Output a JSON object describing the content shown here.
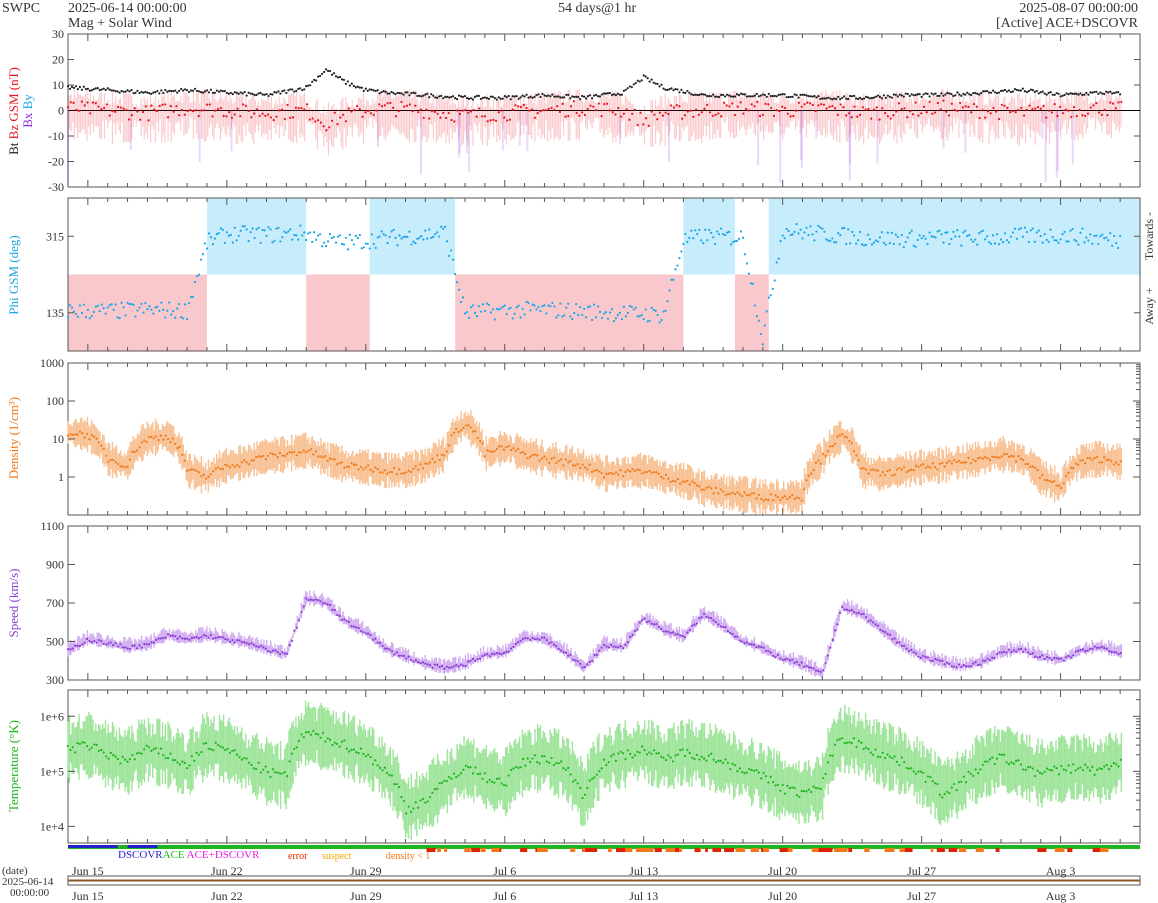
{
  "header": {
    "brand": "SWPC",
    "start": "2025-06-14 00:00:00",
    "subtitle": "Mag + Solar Wind",
    "span": "54 days@1 hr",
    "end": "2025-08-07 00:00:00",
    "source": "[Active] ACE+DSCOVR"
  },
  "legend": {
    "dscovr": "DSCOVR",
    "ace": "ACE",
    "both": "ACE+DSCOVR",
    "error": "error",
    "suspect": "suspect",
    "density": "density < 1"
  },
  "date_axis": {
    "label": "(date)",
    "date": "2025-06-14",
    "time": "00:00:00"
  },
  "colors": {
    "bt": "#222222",
    "bz": "#e8141e",
    "by": "#1aa6e6",
    "bx": "#8a2be2",
    "phi": "#1aa6e6",
    "phi_towards": "#c7ecfb",
    "phi_away": "#f9c8cc",
    "density": "#f07a1a",
    "density_band": "#f8c194",
    "speed": "#8a3fd6",
    "speed_band": "#d2aef0",
    "temperature": "#1fb51f",
    "temperature_band": "#9ee49a",
    "dscovr": "#2222cc",
    "ace": "#1fb51f",
    "both": "#e020e0",
    "error": "#dd2200",
    "suspect": "#e8a800",
    "density_flag": "#f07a1a"
  },
  "chart_data": [
    {
      "type": "line",
      "ylabel_parts": [
        "Bt",
        "Bz GSM (nT)",
        "Bx",
        "By"
      ],
      "ylim": [
        -30,
        30
      ],
      "yticks": [
        -30,
        -20,
        -10,
        0,
        10,
        20,
        30
      ],
      "x": [
        0,
        2,
        4,
        6,
        8,
        10,
        12,
        13,
        14,
        15,
        16,
        18,
        20,
        22,
        24,
        26,
        28,
        29,
        30,
        32,
        34,
        36,
        38,
        40,
        42,
        44,
        46,
        48,
        50,
        52,
        54
      ],
      "series": [
        {
          "name": "Bt",
          "values": [
            9,
            8,
            7,
            8,
            7,
            6,
            9,
            16,
            11,
            8,
            7,
            6,
            5,
            5,
            6,
            5,
            7,
            13,
            9,
            6,
            6,
            6,
            5,
            5,
            6,
            6,
            7,
            8,
            6,
            7,
            6
          ]
        },
        {
          "name": "Bz",
          "values": [
            1,
            0,
            -1,
            1,
            0,
            -1,
            0,
            -5,
            -2,
            0,
            1,
            0,
            -2,
            -1,
            0,
            1,
            0,
            -4,
            -1,
            0,
            1,
            0,
            1,
            -1,
            0,
            1,
            0,
            -1,
            0,
            1,
            0
          ]
        }
      ]
    },
    {
      "type": "scatter",
      "ylabel": "Phi GSM (deg)",
      "right_labels": [
        "Towards -",
        "Away +"
      ],
      "ylim": [
        45,
        405
      ],
      "yticks": [
        135,
        315
      ],
      "towards_days": [
        [
          7.0,
          12.0
        ],
        [
          15.2,
          19.5
        ],
        [
          31.0,
          33.6
        ],
        [
          35.3,
          54
        ]
      ],
      "away_days": [
        [
          0,
          7.0
        ],
        [
          12.0,
          15.2
        ],
        [
          19.5,
          31.0
        ],
        [
          33.6,
          35.3
        ]
      ],
      "x": [
        0,
        2,
        4,
        6,
        7,
        8,
        10,
        12,
        13,
        14,
        16,
        18,
        19,
        20,
        22,
        24,
        26,
        28,
        30,
        31,
        32,
        34,
        35,
        36,
        38,
        40,
        42,
        44,
        46,
        48,
        50,
        52,
        54
      ],
      "values": [
        140,
        138,
        142,
        140,
        300,
        320,
        318,
        322,
        305,
        300,
        310,
        318,
        325,
        135,
        140,
        142,
        138,
        134,
        130,
        305,
        315,
        312,
        75,
        330,
        320,
        312,
        308,
        312,
        310,
        315,
        318,
        310,
        300
      ]
    },
    {
      "type": "line",
      "ylabel": "Density (1/cm³)",
      "log_scale": true,
      "ylim": [
        0.1,
        1000
      ],
      "yticks": [
        "1",
        "10",
        "100",
        "1000"
      ],
      "x": [
        0,
        1,
        2,
        3,
        4,
        5,
        6,
        7,
        8,
        9,
        10,
        11,
        12,
        13,
        14,
        15,
        16,
        17,
        18,
        19,
        20,
        21,
        22,
        23,
        24,
        25,
        26,
        27,
        28,
        29,
        30,
        31,
        32,
        33,
        34,
        35,
        36,
        37,
        38,
        39,
        40,
        41,
        42,
        43,
        44,
        45,
        46,
        47,
        48,
        49,
        50,
        51,
        52,
        53,
        54
      ],
      "values": [
        15,
        13,
        3,
        2,
        10,
        12,
        1.5,
        1,
        2,
        2.5,
        3.5,
        4,
        5,
        3,
        2,
        1.8,
        1.5,
        1.5,
        2,
        4,
        25,
        4,
        6,
        4,
        3,
        2.5,
        2,
        1.2,
        1.3,
        1.5,
        1,
        0.8,
        0.5,
        0.4,
        0.35,
        0.3,
        0.3,
        0.3,
        3,
        12,
        1.5,
        1.2,
        1.5,
        1.8,
        2,
        2.5,
        3,
        4,
        3,
        1,
        0.5,
        2.5,
        3,
        2.5,
        3
      ]
    },
    {
      "type": "line",
      "ylabel": "Speed (km/s)",
      "ylim": [
        300,
        1100
      ],
      "yticks": [
        300,
        500,
        700,
        900,
        1100
      ],
      "x": [
        0,
        1,
        2,
        3,
        4,
        5,
        6,
        7,
        8,
        9,
        10,
        11,
        12,
        13,
        14,
        15,
        16,
        17,
        18,
        19,
        20,
        21,
        22,
        23,
        24,
        25,
        26,
        27,
        28,
        29,
        30,
        31,
        32,
        33,
        34,
        35,
        36,
        37,
        38,
        39,
        40,
        41,
        42,
        43,
        44,
        45,
        46,
        47,
        48,
        49,
        50,
        51,
        52,
        53,
        54
      ],
      "values": [
        450,
        510,
        490,
        470,
        480,
        530,
        510,
        530,
        510,
        490,
        460,
        430,
        720,
        700,
        600,
        550,
        460,
        420,
        380,
        360,
        380,
        430,
        440,
        520,
        510,
        450,
        360,
        480,
        470,
        620,
        560,
        520,
        640,
        580,
        500,
        460,
        410,
        380,
        330,
        680,
        640,
        560,
        480,
        420,
        390,
        370,
        390,
        440,
        460,
        420,
        400,
        450,
        470,
        440,
        450
      ]
    },
    {
      "type": "line",
      "ylabel": "Temperature (°K)",
      "log_scale": true,
      "ylim": [
        5000,
        3000000
      ],
      "yticks": [
        "1e+4",
        "1e+5",
        "1e+6"
      ],
      "x": [
        0,
        1,
        2,
        3,
        4,
        5,
        6,
        7,
        8,
        9,
        10,
        11,
        12,
        13,
        14,
        15,
        16,
        17,
        18,
        19,
        20,
        21,
        22,
        23,
        24,
        25,
        26,
        27,
        28,
        29,
        30,
        31,
        32,
        33,
        34,
        35,
        36,
        37,
        38,
        39,
        40,
        41,
        42,
        43,
        44,
        45,
        46,
        47,
        48,
        49,
        50,
        51,
        52,
        53,
        54
      ],
      "values": [
        250000,
        300000,
        200000,
        150000,
        250000,
        200000,
        120000,
        300000,
        250000,
        150000,
        100000,
        80000,
        500000,
        400000,
        300000,
        200000,
        100000,
        20000,
        30000,
        60000,
        120000,
        80000,
        60000,
        150000,
        180000,
        120000,
        30000,
        150000,
        200000,
        250000,
        160000,
        220000,
        200000,
        150000,
        110000,
        80000,
        50000,
        40000,
        50000,
        400000,
        300000,
        200000,
        150000,
        90000,
        40000,
        60000,
        120000,
        180000,
        130000,
        90000,
        110000,
        120000,
        100000,
        150000,
        100000
      ]
    }
  ],
  "x_axis": {
    "start_day_index": 0,
    "ticks": [
      {
        "label": "Jun 15",
        "day": 1
      },
      {
        "label": "Jun 22",
        "day": 8
      },
      {
        "label": "Jun 29",
        "day": 15
      },
      {
        "label": "Jul 6",
        "day": 22
      },
      {
        "label": "Jul 13",
        "day": 29
      },
      {
        "label": "Jul 20",
        "day": 36
      },
      {
        "label": "Jul 27",
        "day": 43
      },
      {
        "label": "Aug 3",
        "day": 50
      }
    ]
  }
}
